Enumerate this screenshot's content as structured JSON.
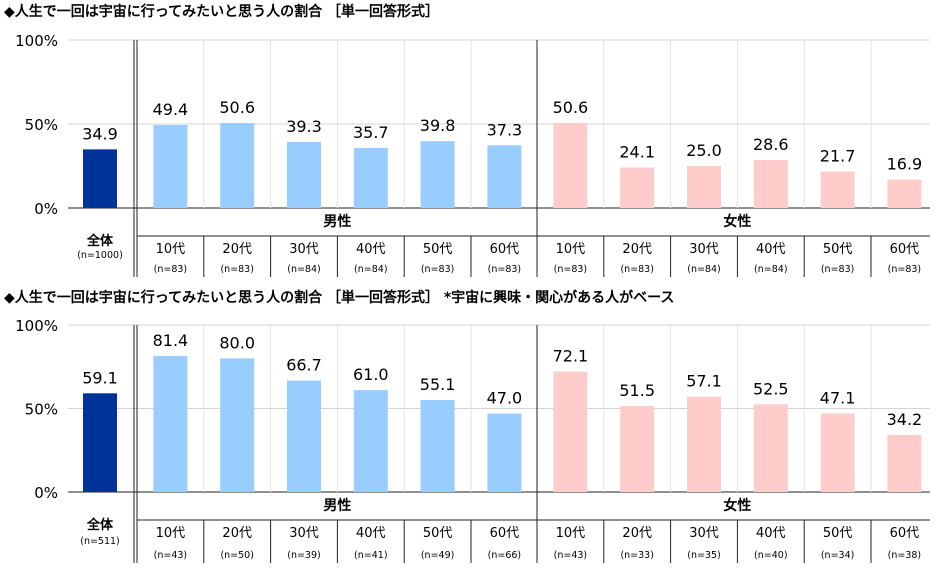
{
  "chart_data": [
    {
      "type": "bar",
      "title": "◆人生で一回は宇宙に行ってみたいと思う人の割合 ［単一回答形式］",
      "yticks": [
        "100%",
        "50%",
        "0%"
      ],
      "ylim": [
        0,
        100
      ],
      "grid": true,
      "overall": {
        "label": "全体",
        "n": "(n=1000)",
        "value": 34.9,
        "display": "34.9",
        "color": "#003399"
      },
      "groups": [
        {
          "name": "男性",
          "color": "#99ccff",
          "categories": [
            "10代",
            "20代",
            "30代",
            "40代",
            "50代",
            "60代"
          ],
          "n": [
            "(n=83)",
            "(n=83)",
            "(n=84)",
            "(n=84)",
            "(n=83)",
            "(n=83)"
          ],
          "values": [
            49.4,
            50.6,
            39.3,
            35.7,
            39.8,
            37.3
          ],
          "display": [
            "49.4",
            "50.6",
            "39.3",
            "35.7",
            "39.8",
            "37.3"
          ]
        },
        {
          "name": "女性",
          "color": "#ffcccc",
          "categories": [
            "10代",
            "20代",
            "30代",
            "40代",
            "50代",
            "60代"
          ],
          "n": [
            "(n=83)",
            "(n=83)",
            "(n=84)",
            "(n=84)",
            "(n=83)",
            "(n=83)"
          ],
          "values": [
            50.6,
            24.1,
            25.0,
            28.6,
            21.7,
            16.9
          ],
          "display": [
            "50.6",
            "24.1",
            "25.0",
            "28.6",
            "21.7",
            "16.9"
          ]
        }
      ]
    },
    {
      "type": "bar",
      "title": "◆人生で一回は宇宙に行ってみたいと思う人の割合 ［単一回答形式］ *宇宙に興味・関心がある人がベース",
      "yticks": [
        "100%",
        "50%",
        "0%"
      ],
      "ylim": [
        0,
        100
      ],
      "grid": true,
      "overall": {
        "label": "全体",
        "n": "(n=511)",
        "value": 59.1,
        "display": "59.1",
        "color": "#003399"
      },
      "groups": [
        {
          "name": "男性",
          "color": "#99ccff",
          "categories": [
            "10代",
            "20代",
            "30代",
            "40代",
            "50代",
            "60代"
          ],
          "n": [
            "(n=43)",
            "(n=50)",
            "(n=39)",
            "(n=41)",
            "(n=49)",
            "(n=66)"
          ],
          "values": [
            81.4,
            80.0,
            66.7,
            61.0,
            55.1,
            47.0
          ],
          "display": [
            "81.4",
            "80.0",
            "66.7",
            "61.0",
            "55.1",
            "47.0"
          ]
        },
        {
          "name": "女性",
          "color": "#ffcccc",
          "categories": [
            "10代",
            "20代",
            "30代",
            "40代",
            "50代",
            "60代"
          ],
          "n": [
            "(n=43)",
            "(n=33)",
            "(n=35)",
            "(n=40)",
            "(n=34)",
            "(n=38)"
          ],
          "values": [
            72.1,
            51.5,
            57.1,
            52.5,
            47.1,
            34.2
          ],
          "display": [
            "72.1",
            "51.5",
            "57.1",
            "52.5",
            "47.1",
            "34.2"
          ]
        }
      ]
    }
  ]
}
